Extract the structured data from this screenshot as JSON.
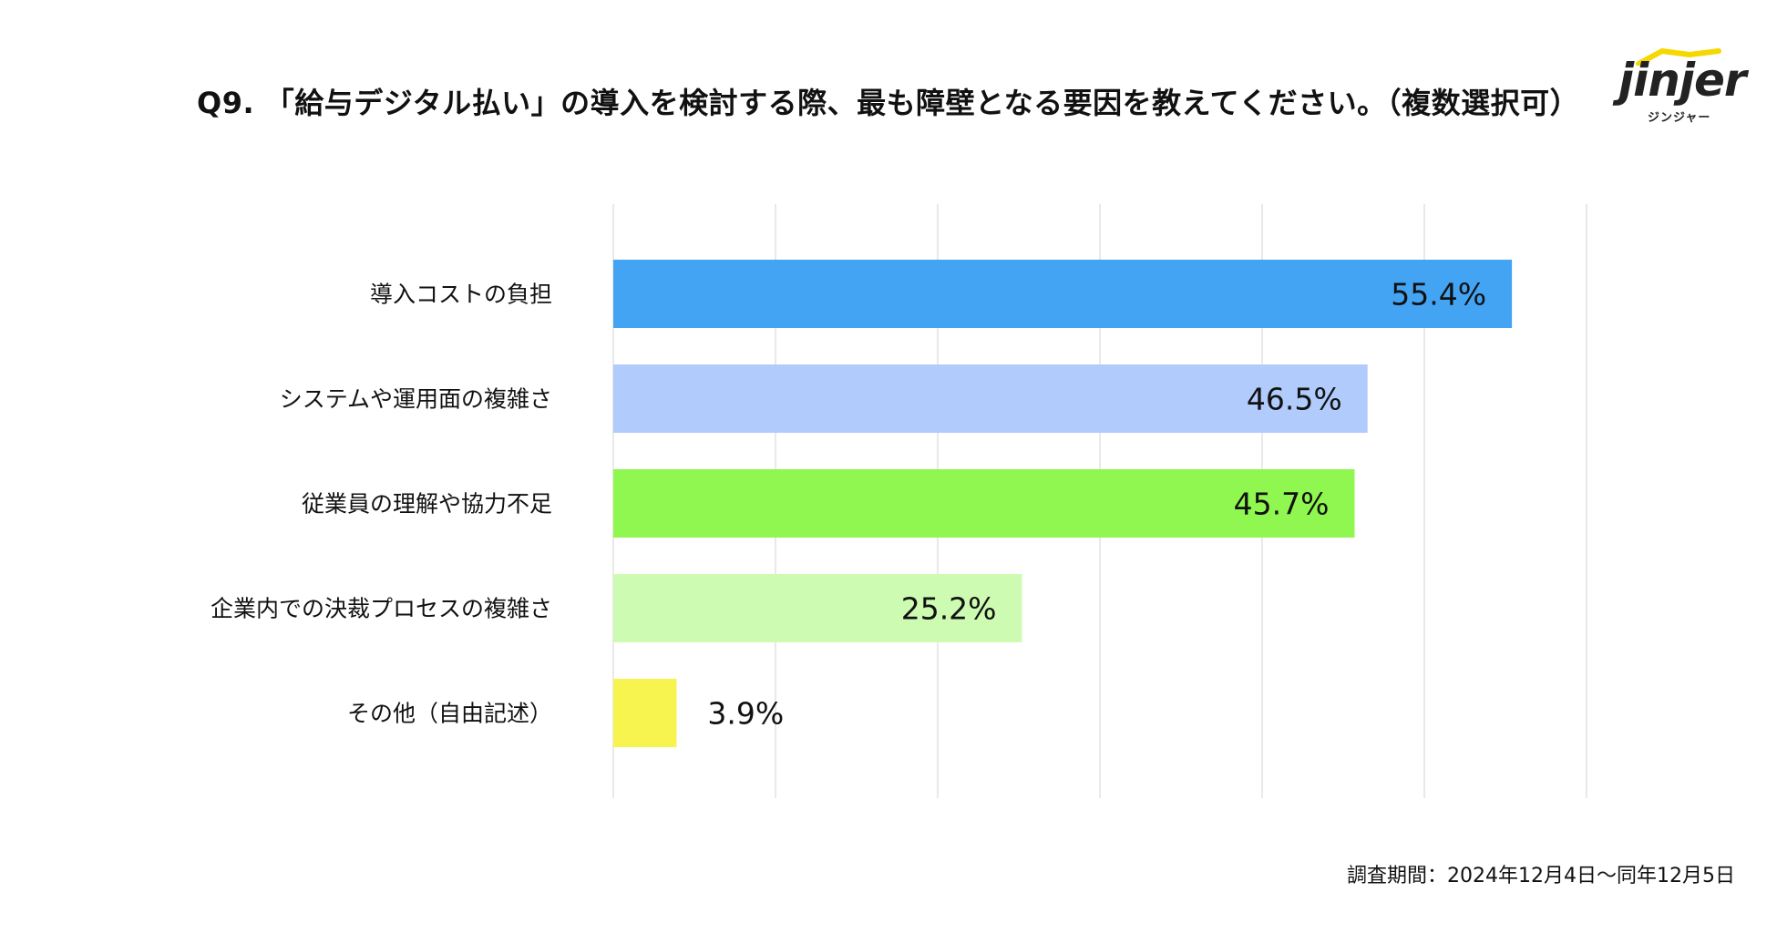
{
  "header": {
    "title": "Q9. 「給与デジタル払い」の導入を検討する際、最も障壁となる要因を教えてください。（複数選択可）"
  },
  "logo": {
    "word": "jinjer",
    "sub": "ジンジャー",
    "accent": "#f5d800"
  },
  "footer": {
    "period": "調査期間：2024年12月4日〜同年12月5日"
  },
  "chart_data": {
    "type": "bar",
    "orientation": "horizontal",
    "title": "Q9. 「給与デジタル払い」の導入を検討する際、最も障壁となる要因を教えてください。（複数選択可）",
    "categories": [
      "導入コストの負担",
      "システムや運用面の複雑さ",
      "従業員の理解や協力不足",
      "企業内での決裁プロセスの複雑さ",
      "その他（自由記述）"
    ],
    "values": [
      55.4,
      46.5,
      45.7,
      25.2,
      3.9
    ],
    "value_labels": [
      "55.4%",
      "46.5%",
      "45.7%",
      "25.2%",
      "3.9%"
    ],
    "colors": [
      "#44a4f4",
      "#b0cbfc",
      "#8ff74f",
      "#cefbb2",
      "#f7f450"
    ],
    "xlim": [
      0,
      60
    ],
    "grid_step": 10,
    "grid": true,
    "unit": "%"
  }
}
